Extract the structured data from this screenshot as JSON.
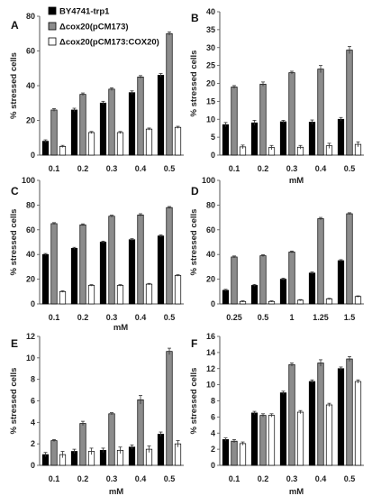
{
  "legend": [
    {
      "name": "BY4741-trp1",
      "color": "#000000"
    },
    {
      "name": "Δcox20(pCM173)",
      "color": "#8c8c8c"
    },
    {
      "name": "Δcox20(pCM173:COX20)",
      "color": "#ffffff"
    }
  ],
  "chart_data": [
    {
      "panel": "A",
      "type": "bar",
      "ylabel": "% stressed cells",
      "xlabel": "",
      "ylim": [
        0,
        80
      ],
      "yticks": [
        0,
        20,
        40,
        60,
        80
      ],
      "categories": [
        "0.1",
        "0.2",
        "0.3",
        "0.4",
        "0.5"
      ],
      "series": [
        {
          "name": "BY4741-trp1",
          "values": [
            8,
            26,
            30,
            36,
            46
          ],
          "errors": [
            0.8,
            1,
            1,
            1,
            1
          ]
        },
        {
          "name": "Δcox20(pCM173)",
          "values": [
            26,
            35,
            38,
            45,
            70
          ],
          "errors": [
            0.8,
            0.8,
            0.8,
            0.8,
            1
          ]
        },
        {
          "name": "Δcox20(pCM173:COX20)",
          "values": [
            5,
            13,
            13,
            15,
            16
          ],
          "errors": [
            0.6,
            0.6,
            0.6,
            0.6,
            0.6
          ]
        }
      ]
    },
    {
      "panel": "B",
      "type": "bar",
      "ylabel": "% stressed cells",
      "xlabel": "mM",
      "ylim": [
        0,
        40
      ],
      "yticks": [
        0,
        5,
        10,
        15,
        20,
        25,
        30,
        35,
        40
      ],
      "categories": [
        "0.1",
        "0.2",
        "0.3",
        "0.4",
        "0.5"
      ],
      "series": [
        {
          "name": "BY4741-trp1",
          "values": [
            8.5,
            9,
            9.3,
            9.2,
            10
          ],
          "errors": [
            0.6,
            0.7,
            0.4,
            0.6,
            0.5
          ]
        },
        {
          "name": "Δcox20(pCM173)",
          "values": [
            19,
            19.8,
            23,
            24,
            29.3
          ],
          "errors": [
            0.4,
            0.6,
            0.4,
            1,
            1
          ]
        },
        {
          "name": "Δcox20(pCM173:COX20)",
          "values": [
            2.3,
            2.1,
            2.2,
            2.6,
            3
          ],
          "errors": [
            0.5,
            0.6,
            0.5,
            0.7,
            0.7
          ]
        }
      ]
    },
    {
      "panel": "C",
      "type": "bar",
      "ylabel": "% stressed cells",
      "xlabel": "mM",
      "ylim": [
        0,
        100
      ],
      "yticks": [
        0,
        20,
        40,
        60,
        80,
        100
      ],
      "categories": [
        "0.1",
        "0.2",
        "0.3",
        "0.4",
        "0.5"
      ],
      "series": [
        {
          "name": "BY4741-trp1",
          "values": [
            40,
            45,
            50,
            52,
            55
          ],
          "errors": [
            0.8,
            0.8,
            0.8,
            0.8,
            0.8
          ]
        },
        {
          "name": "Δcox20(pCM173)",
          "values": [
            65,
            64,
            71,
            72,
            78
          ],
          "errors": [
            0.8,
            0.8,
            0.8,
            1,
            0.8
          ]
        },
        {
          "name": "Δcox20(pCM173:COX20)",
          "values": [
            10,
            15,
            15,
            16,
            23
          ],
          "errors": [
            0.6,
            0.6,
            0.6,
            0.6,
            0.6
          ]
        }
      ]
    },
    {
      "panel": "D",
      "type": "bar",
      "ylabel": "% stressed cells",
      "xlabel": "",
      "ylim": [
        0,
        100
      ],
      "yticks": [
        0,
        20,
        40,
        60,
        80,
        100
      ],
      "categories": [
        "0.25",
        "0.5",
        "1",
        "1.25",
        "1.5"
      ],
      "series": [
        {
          "name": "BY4741-trp1",
          "values": [
            11,
            15,
            20,
            25,
            35
          ],
          "errors": [
            0.8,
            0.8,
            0.8,
            0.8,
            0.8
          ]
        },
        {
          "name": "Δcox20(pCM173)",
          "values": [
            38,
            39,
            42,
            69,
            73
          ],
          "errors": [
            0.8,
            0.8,
            0.8,
            1,
            0.8
          ]
        },
        {
          "name": "Δcox20(pCM173:COX20)",
          "values": [
            2,
            2,
            3,
            4,
            6
          ],
          "errors": [
            0.5,
            0.5,
            0.5,
            0.5,
            0.5
          ]
        }
      ]
    },
    {
      "panel": "E",
      "type": "bar",
      "ylabel": "% stressed cells",
      "xlabel": "mM",
      "ylim": [
        0,
        12
      ],
      "yticks": [
        0,
        2,
        4,
        6,
        8,
        10,
        12
      ],
      "categories": [
        "0.1",
        "0.2",
        "0.3",
        "0.4",
        "0.5"
      ],
      "series": [
        {
          "name": "BY4741-trp1",
          "values": [
            1,
            1.3,
            1.4,
            1.7,
            2.9
          ],
          "errors": [
            0.2,
            0.2,
            0.2,
            0.2,
            0.2
          ]
        },
        {
          "name": "Δcox20(pCM173)",
          "values": [
            2.3,
            3.9,
            4.8,
            6.1,
            10.6
          ],
          "errors": [
            0.1,
            0.2,
            0.1,
            0.4,
            0.3
          ]
        },
        {
          "name": "Δcox20(pCM173:COX20)",
          "values": [
            1,
            1.3,
            1.4,
            1.5,
            2
          ],
          "errors": [
            0.3,
            0.3,
            0.3,
            0.3,
            0.3
          ]
        }
      ]
    },
    {
      "panel": "F",
      "type": "bar",
      "ylabel": "% stressed cells",
      "xlabel": "mM",
      "ylim": [
        0,
        16
      ],
      "yticks": [
        0,
        2,
        4,
        6,
        8,
        10,
        12,
        14,
        16
      ],
      "categories": [
        "0.1",
        "0.2",
        "0.3",
        "0.4",
        "0.5"
      ],
      "series": [
        {
          "name": "BY4741-trp1",
          "values": [
            3.2,
            6.5,
            9,
            10.4,
            12
          ],
          "errors": [
            0.2,
            0.2,
            0.2,
            0.2,
            0.2
          ]
        },
        {
          "name": "Δcox20(pCM173)",
          "values": [
            3,
            6.2,
            12.5,
            12.7,
            13.2
          ],
          "errors": [
            0.2,
            0.2,
            0.2,
            0.4,
            0.3
          ]
        },
        {
          "name": "Δcox20(pCM173:COX20)",
          "values": [
            2.7,
            6.2,
            6.6,
            7.5,
            10.4
          ],
          "errors": [
            0.2,
            0.2,
            0.2,
            0.2,
            0.2
          ]
        }
      ]
    }
  ]
}
